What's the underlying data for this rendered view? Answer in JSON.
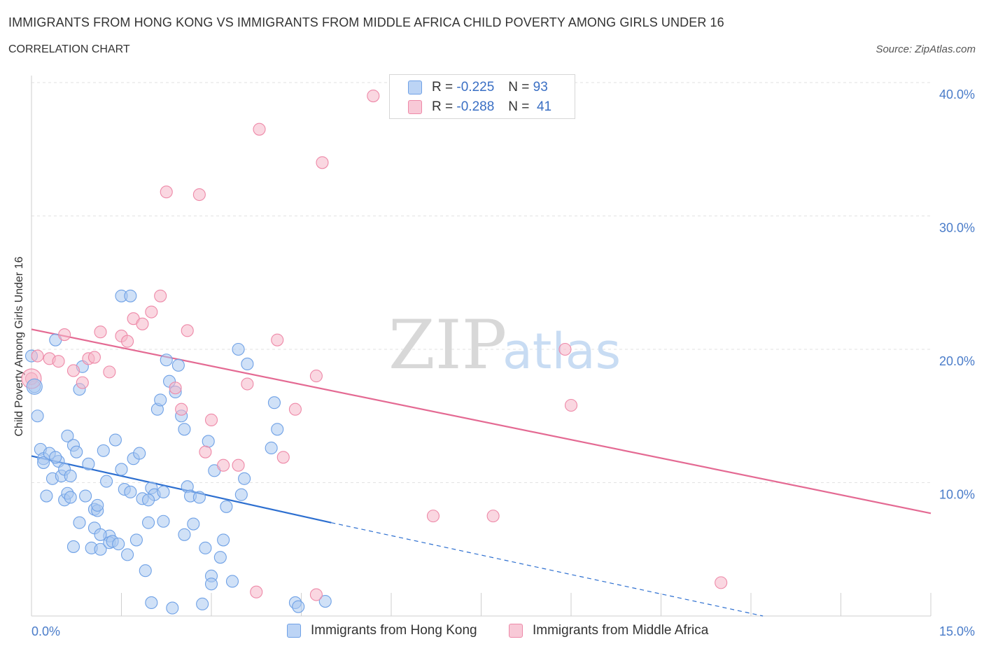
{
  "title": "IMMIGRANTS FROM HONG KONG VS IMMIGRANTS FROM MIDDLE AFRICA CHILD POVERTY AMONG GIRLS UNDER 16",
  "subtitle": "CORRELATION CHART",
  "source": "Source: ZipAtlas.com",
  "watermark": {
    "zip": "ZIP",
    "atlas": "atlas"
  },
  "legend": {
    "rows": [
      {
        "r_label": "R =",
        "r_value": "-0.225",
        "n_label": "N =",
        "n_value": "93",
        "color": "#a9c8f0"
      },
      {
        "r_label": "R =",
        "r_value": "-0.288",
        "n_label": "N =",
        "n_value": "41",
        "color": "#f5b6c9"
      }
    ]
  },
  "chart_data": {
    "type": "scatter",
    "xlabel": "",
    "ylabel": "Child Poverty Among Girls Under 16",
    "xlim": [
      0,
      15
    ],
    "ylim": [
      0,
      40
    ],
    "x_tick_labels": [
      "0.0%",
      "15.0%"
    ],
    "y_ticks": [
      10,
      20,
      30,
      40
    ],
    "y_tick_labels": [
      "10.0%",
      "20.0%",
      "30.0%",
      "40.0%"
    ],
    "grid": true,
    "legend_position": "top-center",
    "series": [
      {
        "name": "Immigrants from Hong Kong",
        "color": "#6fa1e6",
        "fill": "#a9c8f0",
        "trend": {
          "x0": 0.0,
          "y0": 12.0,
          "x1": 5.0,
          "y1": 7.0,
          "dash_to_x": 12.2,
          "dash_to_y": 0.0,
          "color": "#2d6fd0"
        },
        "points": [
          [
            0.0,
            19.5
          ],
          [
            0.05,
            17.2
          ],
          [
            0.1,
            15.0
          ],
          [
            0.15,
            12.5
          ],
          [
            0.2,
            11.8
          ],
          [
            0.2,
            11.5
          ],
          [
            0.25,
            9.0
          ],
          [
            0.3,
            12.2
          ],
          [
            0.35,
            10.3
          ],
          [
            0.4,
            20.7
          ],
          [
            0.45,
            11.6
          ],
          [
            0.5,
            10.5
          ],
          [
            0.55,
            11.0
          ],
          [
            0.55,
            8.7
          ],
          [
            0.6,
            9.2
          ],
          [
            0.6,
            13.5
          ],
          [
            0.65,
            8.9
          ],
          [
            0.65,
            10.5
          ],
          [
            0.7,
            12.8
          ],
          [
            0.7,
            5.2
          ],
          [
            0.75,
            12.3
          ],
          [
            0.8,
            7.0
          ],
          [
            0.8,
            17.0
          ],
          [
            0.85,
            18.7
          ],
          [
            0.9,
            9.0
          ],
          [
            0.95,
            11.4
          ],
          [
            1.0,
            5.1
          ],
          [
            1.05,
            6.6
          ],
          [
            1.05,
            8.0
          ],
          [
            1.1,
            7.9
          ],
          [
            1.1,
            8.3
          ],
          [
            1.15,
            5.0
          ],
          [
            1.2,
            12.4
          ],
          [
            1.25,
            10.1
          ],
          [
            1.3,
            6.0
          ],
          [
            1.3,
            5.5
          ],
          [
            1.35,
            5.6
          ],
          [
            1.4,
            13.2
          ],
          [
            1.45,
            5.4
          ],
          [
            1.5,
            11.0
          ],
          [
            1.5,
            24.0
          ],
          [
            1.55,
            9.5
          ],
          [
            1.6,
            4.6
          ],
          [
            1.65,
            9.3
          ],
          [
            1.65,
            24.0
          ],
          [
            1.7,
            11.8
          ],
          [
            1.75,
            5.7
          ],
          [
            1.8,
            12.2
          ],
          [
            1.85,
            8.8
          ],
          [
            1.9,
            3.4
          ],
          [
            1.95,
            7.0
          ],
          [
            2.0,
            1.0
          ],
          [
            2.0,
            9.6
          ],
          [
            2.05,
            9.1
          ],
          [
            2.1,
            15.5
          ],
          [
            2.15,
            16.2
          ],
          [
            2.2,
            7.1
          ],
          [
            2.2,
            9.3
          ],
          [
            2.25,
            19.2
          ],
          [
            2.3,
            17.6
          ],
          [
            2.35,
            0.6
          ],
          [
            2.4,
            16.8
          ],
          [
            2.45,
            18.8
          ],
          [
            2.5,
            15.0
          ],
          [
            2.55,
            14.0
          ],
          [
            2.55,
            6.1
          ],
          [
            2.6,
            9.7
          ],
          [
            2.65,
            9.0
          ],
          [
            2.7,
            6.9
          ],
          [
            2.8,
            8.9
          ],
          [
            2.9,
            5.1
          ],
          [
            2.95,
            13.1
          ],
          [
            3.0,
            3.0
          ],
          [
            3.0,
            2.4
          ],
          [
            3.05,
            10.9
          ],
          [
            3.15,
            4.4
          ],
          [
            3.2,
            5.7
          ],
          [
            3.25,
            8.2
          ],
          [
            3.35,
            2.6
          ],
          [
            3.45,
            20.0
          ],
          [
            3.5,
            9.1
          ],
          [
            3.55,
            10.3
          ],
          [
            3.6,
            18.9
          ],
          [
            4.0,
            12.6
          ],
          [
            4.05,
            16.0
          ],
          [
            4.1,
            14.0
          ],
          [
            4.4,
            1.0
          ],
          [
            4.45,
            0.7
          ],
          [
            4.9,
            1.1
          ],
          [
            2.85,
            0.9
          ],
          [
            1.15,
            6.1
          ],
          [
            0.4,
            11.9
          ],
          [
            1.95,
            8.7
          ]
        ]
      },
      {
        "name": "Immigrants from Middle Africa",
        "color": "#ee89a8",
        "fill": "#f5b6c9",
        "trend": {
          "x0": 0.0,
          "y0": 21.5,
          "x1": 15.0,
          "y1": 7.7,
          "color": "#e46a93"
        },
        "points": [
          [
            0.0,
            17.8
          ],
          [
            0.1,
            19.5
          ],
          [
            0.3,
            19.3
          ],
          [
            0.45,
            19.1
          ],
          [
            0.55,
            21.1
          ],
          [
            0.7,
            18.4
          ],
          [
            0.85,
            17.5
          ],
          [
            0.95,
            19.3
          ],
          [
            1.05,
            19.4
          ],
          [
            1.15,
            21.3
          ],
          [
            1.3,
            18.3
          ],
          [
            1.5,
            21.0
          ],
          [
            1.6,
            20.6
          ],
          [
            1.7,
            22.3
          ],
          [
            1.85,
            21.9
          ],
          [
            2.0,
            22.8
          ],
          [
            2.15,
            24.0
          ],
          [
            2.25,
            31.8
          ],
          [
            2.4,
            17.1
          ],
          [
            2.5,
            15.5
          ],
          [
            2.6,
            21.4
          ],
          [
            2.8,
            31.6
          ],
          [
            2.9,
            12.3
          ],
          [
            3.0,
            14.7
          ],
          [
            3.2,
            11.3
          ],
          [
            3.45,
            11.3
          ],
          [
            3.6,
            17.4
          ],
          [
            3.75,
            1.8
          ],
          [
            3.8,
            36.5
          ],
          [
            4.1,
            20.7
          ],
          [
            4.2,
            11.9
          ],
          [
            4.4,
            15.5
          ],
          [
            4.75,
            1.6
          ],
          [
            4.75,
            18.0
          ],
          [
            4.85,
            34.0
          ],
          [
            5.7,
            39.0
          ],
          [
            6.7,
            7.5
          ],
          [
            7.7,
            7.5
          ],
          [
            8.9,
            20.0
          ],
          [
            9.0,
            15.8
          ],
          [
            11.5,
            2.5
          ]
        ]
      }
    ]
  }
}
